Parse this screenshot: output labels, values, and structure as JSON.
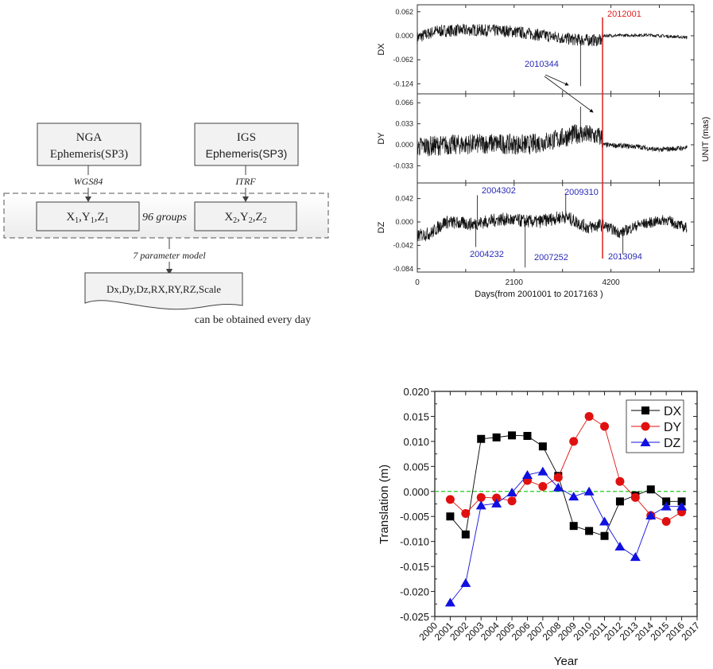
{
  "flowchart": {
    "nga_box": {
      "line1": "NGA",
      "line2": "Ephemeris(SP3)"
    },
    "igs_box": {
      "line1": "IGS",
      "line2": "Ephemeris(SP3)"
    },
    "nga_frame_label": "WGS84",
    "igs_frame_label": "ITRF",
    "x1_box": {
      "x": "X",
      "s1": "1",
      "y": ",Y",
      "s2": "1",
      "z": ",Z",
      "s3": "1"
    },
    "x2_box": {
      "x": "X",
      "s1": "2",
      "y": ",Y",
      "s2": "2",
      "z": ",Z",
      "s3": "2"
    },
    "groups_label": "96 groups",
    "model_label": "7 parameter model",
    "output_box": "Dx,Dy,Dz,RX,RY,RZ,Scale",
    "output_note": "can be obtained every day",
    "colors": {
      "box_fill": "#f2f2f2",
      "border": "#404040"
    }
  },
  "chart_data": [
    {
      "type": "line",
      "title": "",
      "xlabel": "Days(from 2001001 to 2017163  )",
      "ylabel_right": "UNIT (mas)",
      "xlim": [
        0,
        6000
      ],
      "x_ticks": [
        0,
        2100,
        4200
      ],
      "x_tick_labels": [
        "0",
        "2100",
        "4200"
      ],
      "vertical_marker": {
        "x": 4018,
        "label": "2012001",
        "color": "#e02020"
      },
      "panels": [
        {
          "name": "DX",
          "ylabel": "DX",
          "ylim": [
            -0.15,
            0.08
          ],
          "y_ticks": [
            0.062,
            0.0,
            -0.062,
            -0.124
          ],
          "y_tick_labels": [
            "0.062",
            "0.000",
            "-0.062",
            "-0.124"
          ],
          "trend": [
            [
              0,
              -0.005
            ],
            [
              400,
              0.012
            ],
            [
              1200,
              0.015
            ],
            [
              2000,
              0.012
            ],
            [
              2800,
              0.0
            ],
            [
              3400,
              -0.01
            ],
            [
              4000,
              -0.012
            ],
            [
              4018,
              0.0
            ],
            [
              5000,
              0.002
            ],
            [
              5800,
              -0.004
            ]
          ],
          "noise_before": 0.02,
          "noise_after": 0.005,
          "spikes": [
            {
              "x": 3540,
              "y": -0.13
            }
          ]
        },
        {
          "name": "DY",
          "ylabel": "DY",
          "ylim": [
            -0.06,
            0.08
          ],
          "y_ticks": [
            0.066,
            0.033,
            0.0,
            -0.033
          ],
          "y_tick_labels": [
            "0.066",
            "0.033",
            "0.000",
            "-0.033"
          ],
          "trend": [
            [
              0,
              -0.003
            ],
            [
              800,
              0.0
            ],
            [
              1600,
              0.002
            ],
            [
              2400,
              0.0
            ],
            [
              3000,
              0.008
            ],
            [
              3500,
              0.018
            ],
            [
              4000,
              0.012
            ],
            [
              4018,
              0.0
            ],
            [
              4800,
              -0.003
            ],
            [
              5200,
              -0.008
            ],
            [
              5800,
              -0.005
            ]
          ],
          "noise_before": 0.02,
          "noise_after": 0.005,
          "spikes": [
            {
              "x": 3540,
              "y": 0.06
            }
          ]
        },
        {
          "name": "DZ",
          "ylabel": "DZ",
          "ylim": [
            -0.09,
            0.07
          ],
          "y_ticks": [
            0.042,
            0.0,
            -0.042,
            -0.084
          ],
          "y_tick_labels": [
            "0.042",
            "0.000",
            "-0.042",
            "-0.084"
          ],
          "trend": [
            [
              0,
              -0.025
            ],
            [
              300,
              -0.02
            ],
            [
              600,
              0.0
            ],
            [
              1200,
              -0.004
            ],
            [
              1800,
              0.005
            ],
            [
              2600,
              0.0
            ],
            [
              3200,
              0.01
            ],
            [
              3700,
              -0.01
            ],
            [
              4018,
              -0.005
            ],
            [
              4400,
              -0.02
            ],
            [
              4800,
              -0.005
            ],
            [
              5400,
              0.004
            ],
            [
              5800,
              -0.01
            ]
          ],
          "noise_before": 0.015,
          "noise_after": 0.012,
          "spikes": [
            {
              "x": 1300,
              "y": 0.048
            },
            {
              "x": 1270,
              "y": -0.045
            },
            {
              "x": 2340,
              "y": -0.082
            },
            {
              "x": 3220,
              "y": 0.05
            },
            {
              "x": 4460,
              "y": -0.058
            }
          ]
        }
      ],
      "annotations": [
        {
          "text": "2010344",
          "panel": "DX",
          "color": "#2a2ab8"
        },
        {
          "text": "2004302",
          "panel": "DZ",
          "color": "#2a2ab8"
        },
        {
          "text": "2009310",
          "panel": "DZ",
          "color": "#2a2ab8"
        },
        {
          "text": "2004232",
          "panel": "DZ",
          "color": "#2a2ab8"
        },
        {
          "text": "2007252",
          "panel": "DZ",
          "color": "#2a2ab8"
        },
        {
          "text": "2013094",
          "panel": "DZ",
          "color": "#2a2ab8"
        }
      ]
    },
    {
      "type": "line",
      "title": "",
      "xlabel": "Year",
      "ylabel": "Translation (m)",
      "xlim": [
        2000,
        2017
      ],
      "ylim": [
        -0.025,
        0.02
      ],
      "x_tick_labels": [
        "2000",
        "2001",
        "2002",
        "2003",
        "2004",
        "2005",
        "2006",
        "2007",
        "2008",
        "2009",
        "2010",
        "2011",
        "2012",
        "2013",
        "2014",
        "2015",
        "2016",
        "2017"
      ],
      "y_ticks": [
        0.02,
        0.015,
        0.01,
        0.005,
        0.0,
        -0.005,
        -0.01,
        -0.015,
        -0.02,
        -0.025
      ],
      "y_tick_labels": [
        "0.020",
        "0.015",
        "0.010",
        "0.005",
        "0.000",
        "-0.005",
        "-0.010",
        "-0.015",
        "-0.020",
        "-0.025"
      ],
      "reference_line": {
        "y": 0.0,
        "color": "#22cc22",
        "style": "dashed"
      },
      "legend": "top-right",
      "x": [
        2001,
        2002,
        2003,
        2004,
        2005,
        2006,
        2007,
        2008,
        2009,
        2010,
        2011,
        2012,
        2013,
        2014,
        2015,
        2016
      ],
      "series": [
        {
          "name": "DX",
          "color": "#000000",
          "marker": "square",
          "values": [
            -0.005,
            -0.0086,
            0.0105,
            0.0108,
            0.0112,
            0.0111,
            0.009,
            0.0031,
            -0.0069,
            -0.0079,
            -0.0089,
            -0.002,
            -0.0008,
            0.0004,
            -0.002,
            -0.002
          ]
        },
        {
          "name": "DY",
          "color": "#e01010",
          "marker": "circle",
          "values": [
            -0.0016,
            -0.0044,
            -0.0012,
            -0.0013,
            -0.0019,
            0.0022,
            0.001,
            0.0028,
            0.01,
            0.015,
            0.013,
            0.002,
            -0.0012,
            -0.0048,
            -0.006,
            -0.0041
          ]
        },
        {
          "name": "DZ",
          "color": "#1010e0",
          "marker": "triangle",
          "values": [
            -0.0222,
            -0.0183,
            -0.0028,
            -0.0024,
            -0.0002,
            0.0033,
            0.004,
            0.0008,
            -0.001,
            0.0,
            -0.006,
            -0.011,
            -0.0131,
            -0.0048,
            -0.003,
            -0.003
          ]
        }
      ]
    }
  ]
}
